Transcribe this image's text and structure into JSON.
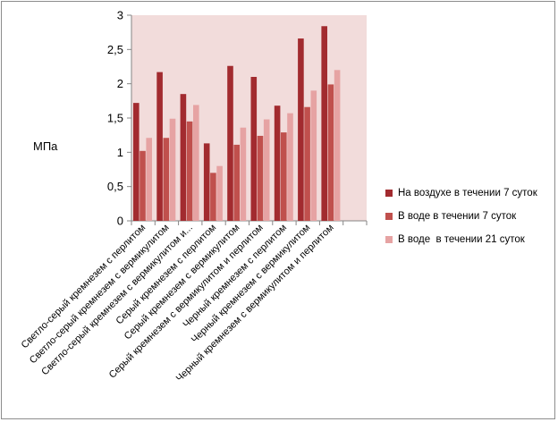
{
  "chart_data": {
    "type": "bar",
    "title": "",
    "xlabel": "",
    "ylabel": "МПа",
    "ylim": [
      0,
      3
    ],
    "yticks": [
      "0",
      "0,5",
      "1",
      "1,5",
      "2",
      "2,5",
      "3"
    ],
    "grid": false,
    "legend_position": "right",
    "plot_background": "#f2dcdb",
    "categories": [
      "Светло-серый кремнезем с перлитом",
      "Светло-серый кремнезем с вермикулитом",
      "Светло-серый кремнезем с вермикулитом и...",
      "Серый кремнезем с перлитом",
      "Серый кремнезем с вермикулитом",
      "Серый кремнезем с вермикулитом и перлитом",
      "Черный кремнезем с перлитом",
      "Черный кремнезем с вермикулитом",
      "Черный кремнезем с вермикулитом и перлитом"
    ],
    "series": [
      {
        "name": "На воздухе в течении 7 суток",
        "color": "#a22b2f",
        "values": [
          1.72,
          2.17,
          1.85,
          1.13,
          2.26,
          2.1,
          1.68,
          2.66,
          2.84
        ]
      },
      {
        "name": "В воде в течении 7 суток",
        "color": "#c0504d",
        "values": [
          1.02,
          1.21,
          1.45,
          0.7,
          1.11,
          1.24,
          1.29,
          1.66,
          1.99
        ]
      },
      {
        "name": "В воде  в течении 21 суток",
        "color": "#e6a3a3",
        "values": [
          1.21,
          1.49,
          1.69,
          0.8,
          1.36,
          1.48,
          1.57,
          1.9,
          2.2
        ]
      }
    ]
  }
}
